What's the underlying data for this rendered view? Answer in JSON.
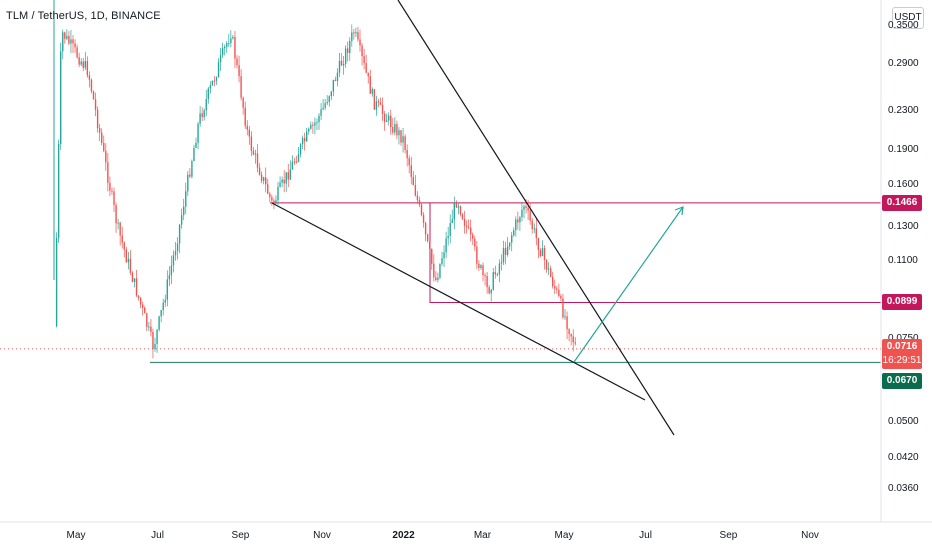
{
  "chart_title": "TLM / TetherUS, 1D, BINANCE",
  "currency_badge": "USDT",
  "y_axis_ticks": [
    "0.3500",
    "0.2900",
    "0.2300",
    "0.1900",
    "0.1600",
    "0.1300",
    "0.1100",
    "0.0750",
    "0.0500",
    "0.0420",
    "0.0360"
  ],
  "x_axis_ticks": [
    "May",
    "Jul",
    "Sep",
    "Nov",
    "2022",
    "Mar",
    "May",
    "Jul",
    "Sep",
    "Nov"
  ],
  "price_tags": {
    "resistance_upper": "0.1466",
    "resistance_lower": "0.0899",
    "last_price": "0.0716",
    "countdown": "16:29:51",
    "support": "0.0670"
  },
  "colors": {
    "up": "#26a69a",
    "down": "#ef5350",
    "resistance": "#c2185b",
    "support": "#1b7f5f",
    "trendline": "#131722",
    "projection": "#26a69a",
    "last_price_tag": "#ef5350",
    "support_tag": "#0a6b4d"
  },
  "chart_data": {
    "type": "candlestick",
    "title": "TLM / TetherUS, 1D, BINANCE",
    "x_range": [
      "2021-04",
      "2022-12"
    ],
    "y_scale": "log",
    "y_range": [
      0.033,
      0.36
    ],
    "horizontal_levels": [
      {
        "name": "resistance_upper",
        "value": 0.1466
      },
      {
        "name": "resistance_lower",
        "value": 0.0899
      },
      {
        "name": "support",
        "value": 0.067
      }
    ],
    "last_price": 0.0716,
    "approx_price_path": [
      {
        "x": "2021-04-15",
        "y": 0.08
      },
      {
        "x": "2021-04-20",
        "y": 0.34
      },
      {
        "x": "2021-05-10",
        "y": 0.28
      },
      {
        "x": "2021-06-01",
        "y": 0.13
      },
      {
        "x": "2021-06-28",
        "y": 0.072
      },
      {
        "x": "2021-07-15",
        "y": 0.12
      },
      {
        "x": "2021-08-01",
        "y": 0.22
      },
      {
        "x": "2021-08-25",
        "y": 0.34
      },
      {
        "x": "2021-09-07",
        "y": 0.2
      },
      {
        "x": "2021-09-25",
        "y": 0.145
      },
      {
        "x": "2021-10-15",
        "y": 0.19
      },
      {
        "x": "2021-11-01",
        "y": 0.23
      },
      {
        "x": "2021-11-25",
        "y": 0.34
      },
      {
        "x": "2021-12-10",
        "y": 0.24
      },
      {
        "x": "2022-01-01",
        "y": 0.2
      },
      {
        "x": "2022-01-25",
        "y": 0.1
      },
      {
        "x": "2022-02-10",
        "y": 0.15
      },
      {
        "x": "2022-03-05",
        "y": 0.095
      },
      {
        "x": "2022-04-01",
        "y": 0.145
      },
      {
        "x": "2022-04-25",
        "y": 0.095
      },
      {
        "x": "2022-05-10",
        "y": 0.072
      }
    ]
  }
}
